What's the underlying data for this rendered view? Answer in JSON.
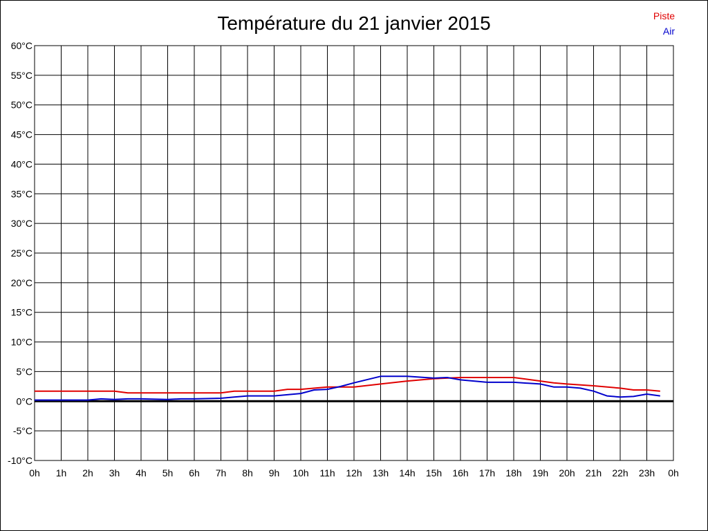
{
  "colors": {
    "piste": "#e00000",
    "air": "#0000cc",
    "grid": "#000000",
    "zero": "#000000"
  },
  "chart_data": {
    "type": "line",
    "title": "Température du 21 janvier 2015",
    "legend": [
      "Piste",
      "Air"
    ],
    "legend_position": "top-right",
    "grid": true,
    "x_ticks": [
      "0h",
      "1h",
      "2h",
      "3h",
      "4h",
      "5h",
      "6h",
      "7h",
      "8h",
      "9h",
      "10h",
      "11h",
      "12h",
      "13h",
      "14h",
      "15h",
      "16h",
      "17h",
      "18h",
      "19h",
      "20h",
      "21h",
      "22h",
      "23h",
      "0h"
    ],
    "y_ticks": [
      "60°C",
      "55°C",
      "50°C",
      "45°C",
      "40°C",
      "35°C",
      "30°C",
      "25°C",
      "20°C",
      "15°C",
      "10°C",
      "5°C",
      "0°C",
      "-5°C",
      "-10°C"
    ],
    "xlim": [
      0,
      24
    ],
    "ylim": [
      -10,
      60
    ],
    "series": [
      {
        "name": "Piste",
        "color": "#e00000",
        "x": [
          0,
          1,
          2,
          3,
          3.5,
          4,
          5,
          6,
          7,
          7.5,
          8,
          9,
          9.5,
          10,
          11,
          12,
          13,
          14,
          15,
          16,
          17,
          18,
          19,
          19.5,
          20,
          21,
          22,
          22.5,
          23,
          23.5
        ],
        "y": [
          1.7,
          1.7,
          1.7,
          1.7,
          1.4,
          1.4,
          1.4,
          1.4,
          1.4,
          1.7,
          1.7,
          1.7,
          2.0,
          2.0,
          2.4,
          2.4,
          2.9,
          3.4,
          3.8,
          4.0,
          4.0,
          4.0,
          3.4,
          3.1,
          2.9,
          2.6,
          2.2,
          1.9,
          1.9,
          1.7
        ]
      },
      {
        "name": "Air",
        "color": "#0000cc",
        "x": [
          0,
          1,
          2,
          2.5,
          3,
          3.5,
          4,
          5,
          5.5,
          6,
          7,
          7.5,
          8,
          9,
          10,
          10.5,
          11,
          11.5,
          12,
          13,
          14,
          15,
          15.5,
          16,
          17,
          18,
          19,
          19.5,
          20,
          20.5,
          21,
          21.5,
          22,
          22.5,
          23,
          23.5
        ],
        "y": [
          0.2,
          0.2,
          0.2,
          0.4,
          0.3,
          0.4,
          0.4,
          0.3,
          0.4,
          0.4,
          0.5,
          0.7,
          0.9,
          0.9,
          1.3,
          1.9,
          2.0,
          2.5,
          3.1,
          4.2,
          4.2,
          3.9,
          4.0,
          3.6,
          3.2,
          3.2,
          2.9,
          2.4,
          2.4,
          2.2,
          1.7,
          0.9,
          0.7,
          0.8,
          1.2,
          0.9
        ]
      }
    ]
  }
}
